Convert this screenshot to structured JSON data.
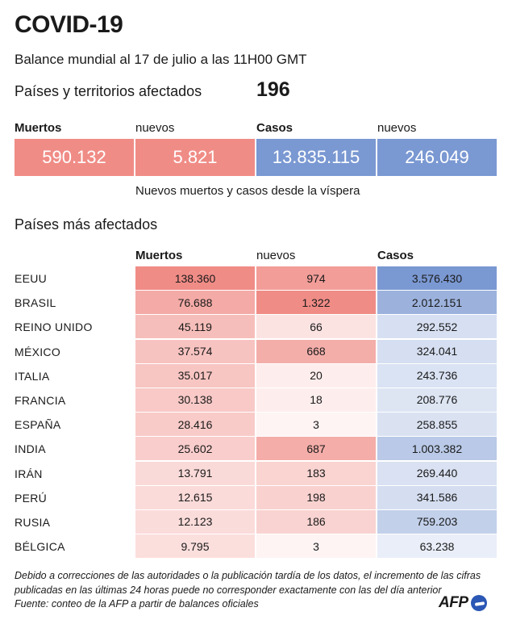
{
  "title": "COVID-19",
  "subtitle": "Balance mundial al 17 de julio a las 11H00 GMT",
  "countries_label": "Países y territorios afectados",
  "countries_value": "196",
  "summary": {
    "headers": [
      "Muertos",
      "nuevos",
      "Casos",
      "nuevos"
    ],
    "values": [
      "590.132",
      "5.821",
      "13.835.115",
      "246.049"
    ],
    "note": "Nuevos muertos y casos desde la víspera"
  },
  "section_title": "Países más afectados",
  "chart_data": {
    "type": "table",
    "title": "Países más afectados",
    "columns": [
      "Muertos",
      "nuevos",
      "Casos"
    ],
    "rows": [
      {
        "country": "EEUU",
        "muertos": "138.360",
        "nuevos": "974",
        "casos": "3.576.430",
        "m": 138360,
        "n": 974,
        "c": 3576430
      },
      {
        "country": "BRASIL",
        "muertos": "76.688",
        "nuevos": "1.322",
        "casos": "2.012.151",
        "m": 76688,
        "n": 1322,
        "c": 2012151
      },
      {
        "country": "REINO UNIDO",
        "muertos": "45.119",
        "nuevos": "66",
        "casos": "292.552",
        "m": 45119,
        "n": 66,
        "c": 292552
      },
      {
        "country": "MÉXICO",
        "muertos": "37.574",
        "nuevos": "668",
        "casos": "324.041",
        "m": 37574,
        "n": 668,
        "c": 324041
      },
      {
        "country": "ITALIA",
        "muertos": "35.017",
        "nuevos": "20",
        "casos": "243.736",
        "m": 35017,
        "n": 20,
        "c": 243736
      },
      {
        "country": "FRANCIA",
        "muertos": "30.138",
        "nuevos": "18",
        "casos": "208.776",
        "m": 30138,
        "n": 18,
        "c": 208776
      },
      {
        "country": "ESPAÑA",
        "muertos": "28.416",
        "nuevos": "3",
        "casos": "258.855",
        "m": 28416,
        "n": 3,
        "c": 258855
      },
      {
        "country": "INDIA",
        "muertos": "25.602",
        "nuevos": "687",
        "casos": "1.003.382",
        "m": 25602,
        "n": 687,
        "c": 1003382
      },
      {
        "country": "IRÁN",
        "muertos": "13.791",
        "nuevos": "183",
        "casos": "269.440",
        "m": 13791,
        "n": 183,
        "c": 269440
      },
      {
        "country": "PERÚ",
        "muertos": "12.615",
        "nuevos": "198",
        "casos": "341.586",
        "m": 12615,
        "n": 198,
        "c": 341586
      },
      {
        "country": "RUSIA",
        "muertos": "12.123",
        "nuevos": "186",
        "casos": "759.203",
        "m": 12123,
        "n": 186,
        "c": 759203
      },
      {
        "country": "BÉLGICA",
        "muertos": "9.795",
        "nuevos": "3",
        "casos": "63.238",
        "m": 9795,
        "n": 3,
        "c": 63238
      }
    ]
  },
  "colors": {
    "red": "#f08c86",
    "blue": "#7a98d2",
    "logo_blue": "#2b57b5"
  },
  "footnote": "Debido a correcciones de las autoridades o la publicación tardía de los datos, el incremento de las cifras publicadas en las últimas 24 horas puede no corresponder exactamente con las del día anterior",
  "source": "Fuente: conteo de la AFP a partir de balances oficiales",
  "logo": "AFP"
}
